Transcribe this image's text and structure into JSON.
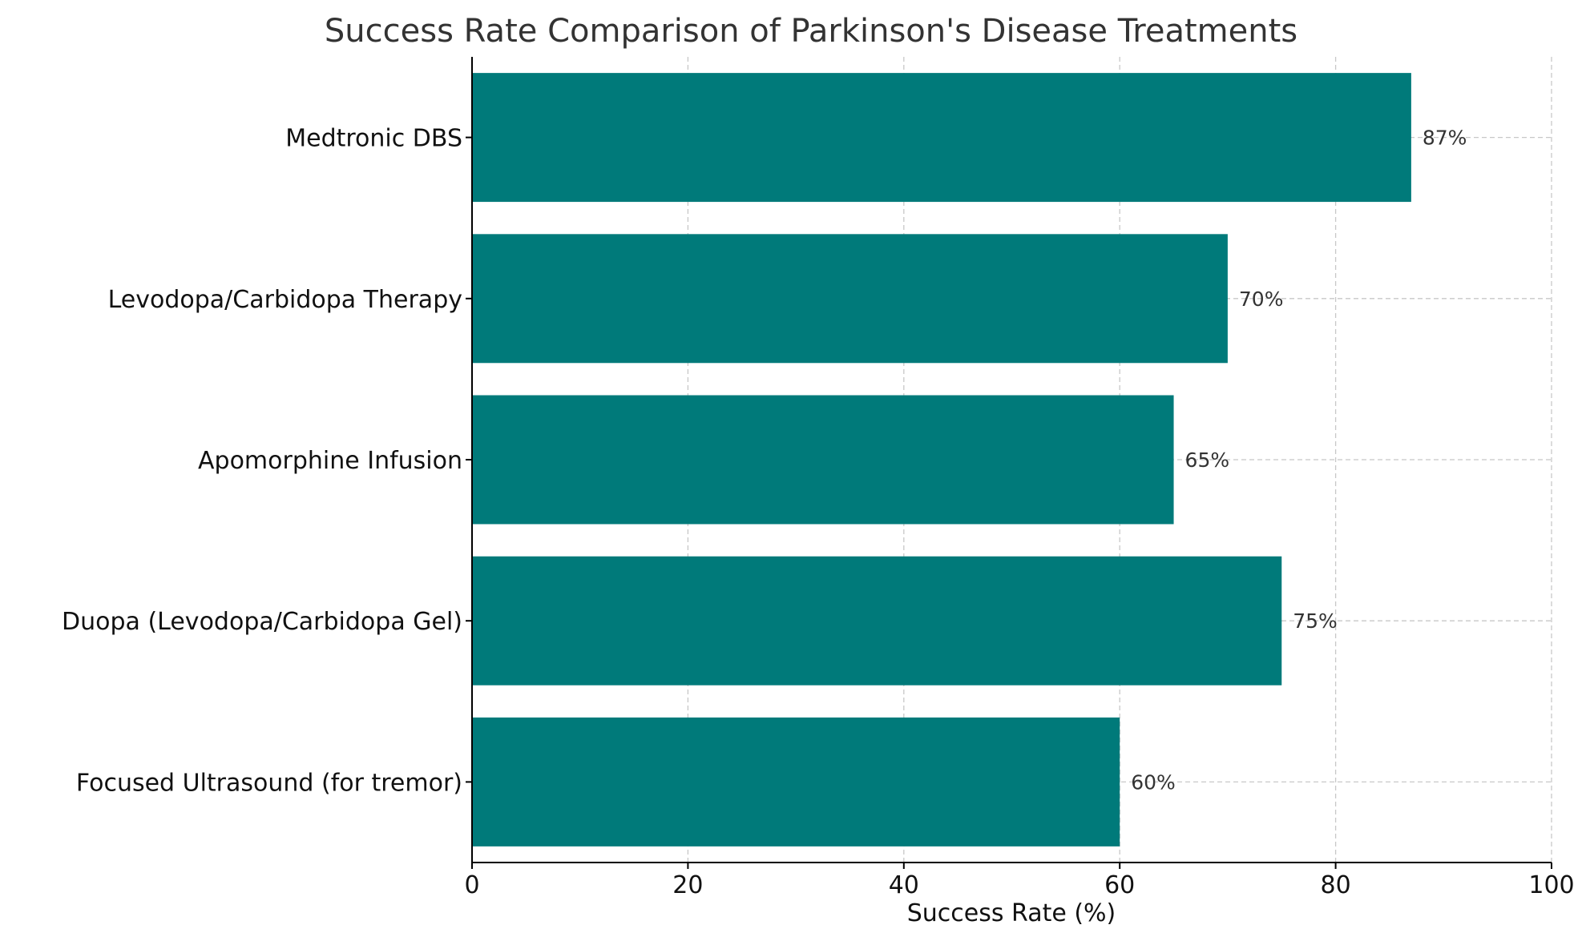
{
  "chart_data": {
    "type": "bar",
    "orientation": "horizontal",
    "title": "Success Rate Comparison of Parkinson's Disease Treatments",
    "xlabel": "Success Rate (%)",
    "ylabel": "",
    "xlim": [
      0,
      100
    ],
    "xticks": [
      0,
      20,
      40,
      60,
      80,
      100
    ],
    "grid": true,
    "bar_color": "#007a7a",
    "categories": [
      "Medtronic DBS",
      "Levodopa/Carbidopa Therapy",
      "Apomorphine Infusion",
      "Duopa (Levodopa/Carbidopa Gel)",
      "Focused Ultrasound (for tremor)"
    ],
    "values": [
      87,
      70,
      65,
      75,
      60
    ],
    "data_labels": [
      "87%",
      "70%",
      "65%",
      "75%",
      "60%"
    ]
  }
}
